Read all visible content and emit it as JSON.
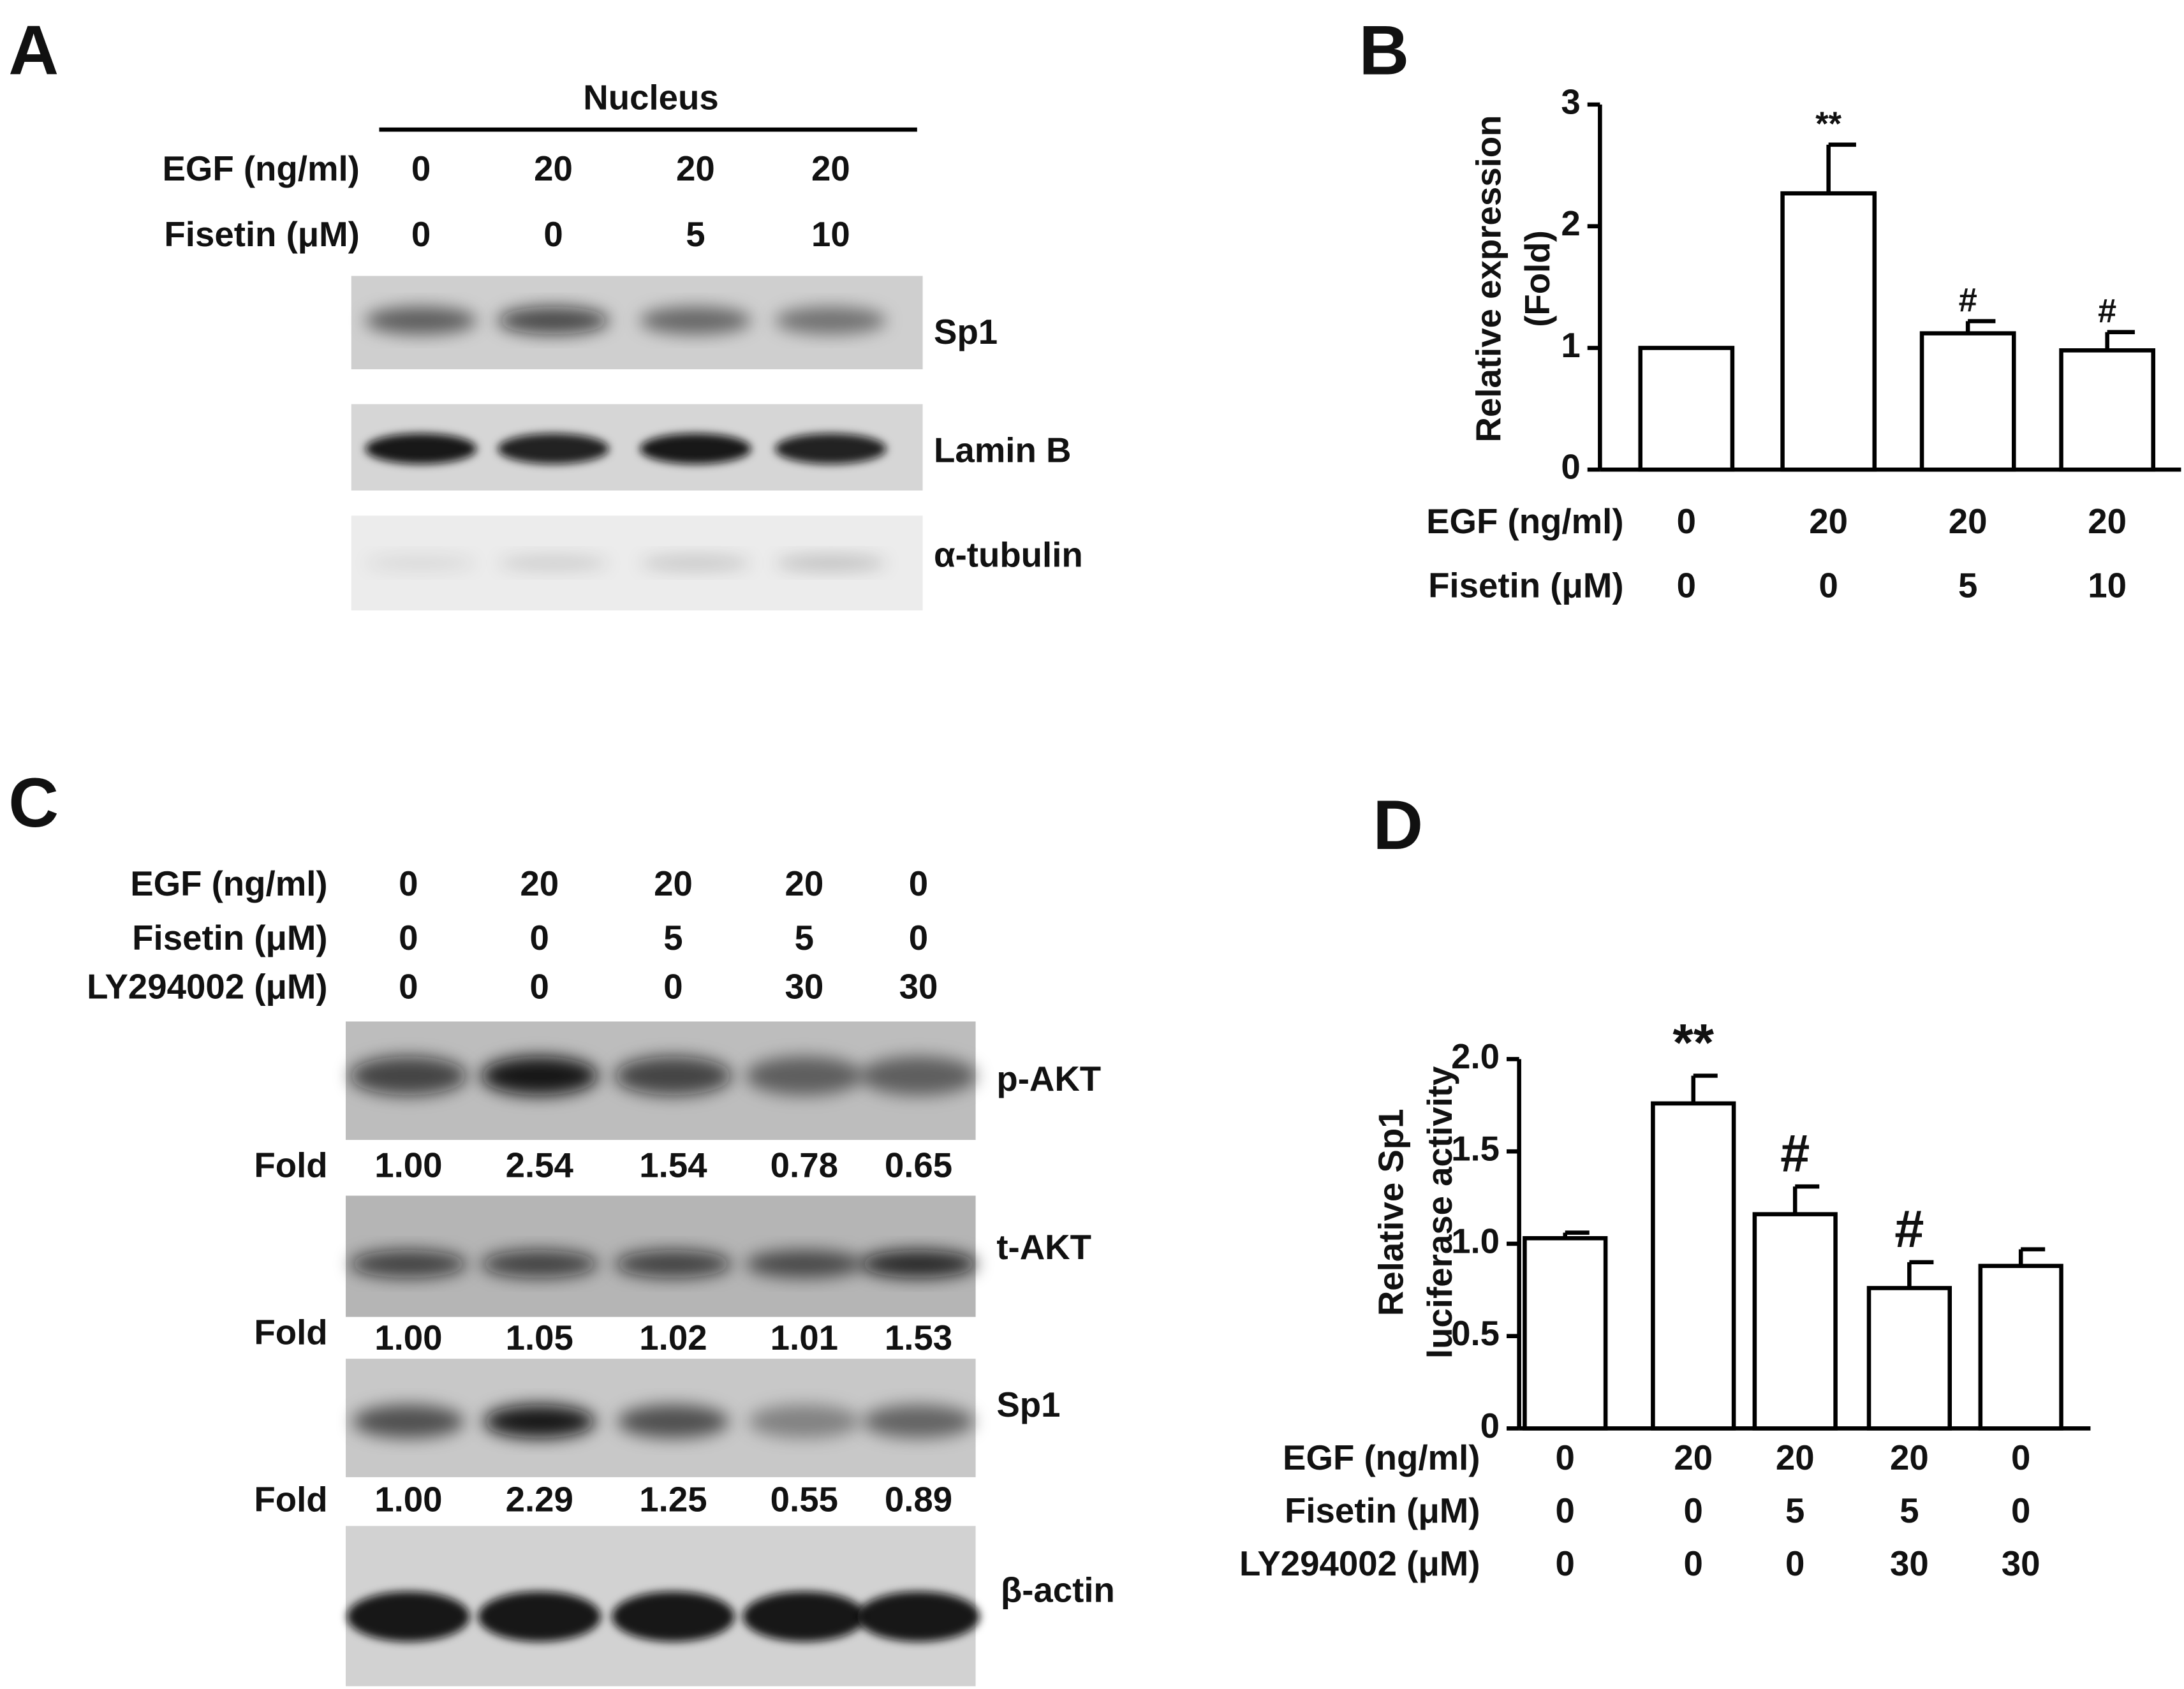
{
  "panel_labels": [
    "A",
    "B",
    "C",
    "D"
  ],
  "blot_a": {
    "header": "Nucleus",
    "conditions": [
      {
        "label": "EGF (ng/ml)",
        "values": [
          "0",
          "20",
          "20",
          "20"
        ]
      },
      {
        "label": "Fisetin (μM)",
        "values": [
          "0",
          "0",
          "5",
          "10"
        ]
      }
    ],
    "bands": [
      {
        "name": "Sp1"
      },
      {
        "name": "Lamin B"
      },
      {
        "name": "α-tubulin"
      }
    ]
  },
  "blot_c": {
    "conditions": [
      {
        "label": "EGF (ng/ml)",
        "values": [
          "0",
          "20",
          "20",
          "20",
          "0"
        ]
      },
      {
        "label": "Fisetin (μM)",
        "values": [
          "0",
          "0",
          "5",
          "5",
          "0"
        ]
      },
      {
        "label": "LY294002 (μM)",
        "values": [
          "0",
          "0",
          "0",
          "30",
          "30"
        ]
      }
    ],
    "bands": [
      {
        "name": "p-AKT",
        "fold_label": "Fold",
        "folds": [
          "1.00",
          "2.54",
          "1.54",
          "0.78",
          "0.65"
        ]
      },
      {
        "name": "t-AKT",
        "fold_label": "Fold",
        "folds": [
          "1.00",
          "1.05",
          "1.02",
          "1.01",
          "1.53"
        ]
      },
      {
        "name": "Sp1",
        "fold_label": "Fold",
        "folds": [
          "1.00",
          "2.29",
          "1.25",
          "0.55",
          "0.89"
        ]
      },
      {
        "name": "β-actin"
      }
    ]
  },
  "chart_data": [
    {
      "type": "bar",
      "ylabel": [
        "Relative expression",
        "(Fold)"
      ],
      "ylim": [
        0,
        3
      ],
      "yticks": [
        0,
        1,
        2,
        3
      ],
      "values": [
        1.0,
        2.27,
        1.12,
        0.98
      ],
      "errors": [
        null,
        0.4,
        0.1,
        0.15
      ],
      "annotations": [
        null,
        "**",
        "#",
        "#"
      ],
      "color": "#ffffff",
      "conditions": [
        {
          "label": "EGF (ng/ml)",
          "values": [
            "0",
            "20",
            "20",
            "20"
          ]
        },
        {
          "label": "Fisetin (μM)",
          "values": [
            "0",
            "0",
            "5",
            "10"
          ]
        }
      ]
    },
    {
      "type": "bar",
      "ylabel": [
        "Relative Sp1",
        "luciferase activity"
      ],
      "ylim": [
        0,
        2.0
      ],
      "yticks": [
        0,
        0.5,
        {
          "value": 1,
          "label": "1.0"
        },
        1.5,
        {
          "value": 2,
          "label": "2.0"
        }
      ],
      "values": [
        1.03,
        1.76,
        1.16,
        0.76,
        0.88
      ],
      "errors": [
        0.03,
        0.15,
        0.15,
        0.14,
        0.09
      ],
      "annotations": [
        null,
        "**",
        "#",
        "#",
        null
      ],
      "color": "#ffffff",
      "conditions": [
        {
          "label": "EGF (ng/ml)",
          "values": [
            "0",
            "20",
            "20",
            "20",
            "0"
          ]
        },
        {
          "label": "Fisetin (μM)",
          "values": [
            "0",
            "0",
            "5",
            "5",
            "0"
          ]
        },
        {
          "label": "LY294002 (μM)",
          "values": [
            "0",
            "0",
            "0",
            "30",
            "30"
          ]
        }
      ]
    }
  ]
}
